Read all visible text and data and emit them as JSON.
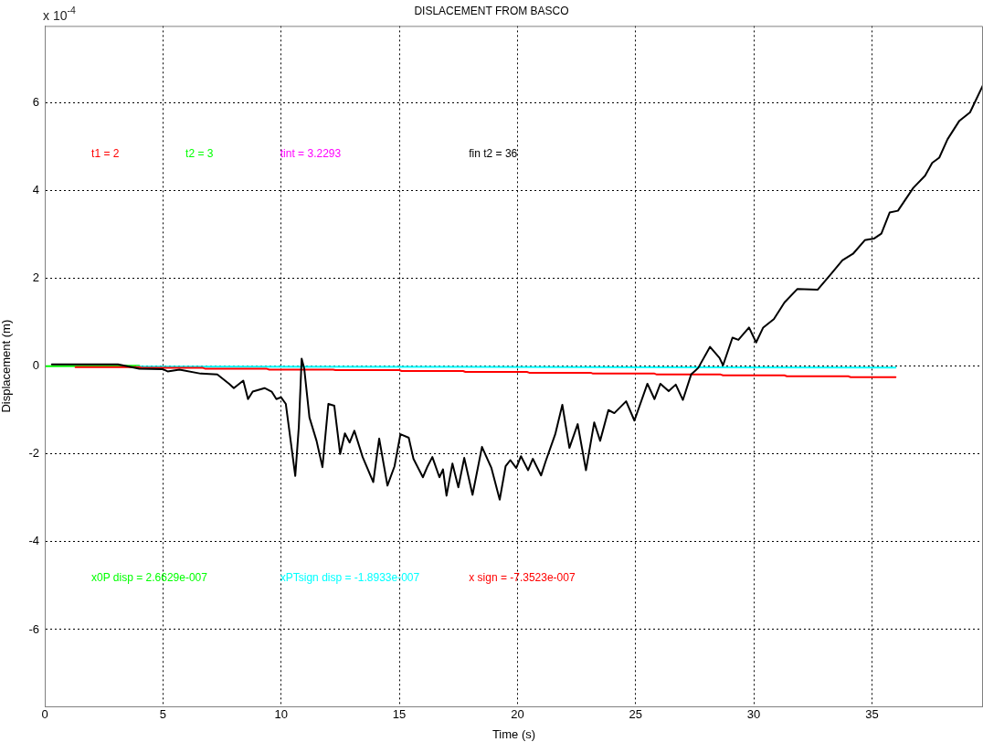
{
  "chart_data": {
    "type": "line",
    "title": "DISLACEMENT FROM BASCO",
    "xlabel": "Time (s)",
    "ylabel": "Displacement (m)",
    "xlim": [
      0,
      39.7
    ],
    "xticks": [
      0,
      5,
      10,
      15,
      20,
      25,
      30,
      35
    ],
    "ylim": [
      -7.75,
      7.75
    ],
    "yticks": [
      -6,
      -4,
      -2,
      0,
      2,
      4,
      6
    ],
    "grid": true,
    "legend": false,
    "marker": "none",
    "line_style": "solid",
    "series": [
      {
        "color": "#000000",
        "x": [
          0.3,
          3.1,
          4.0,
          5.0,
          5.2,
          5.7,
          6.6,
          7.3,
          7.8,
          8.0,
          8.4,
          8.6,
          8.8,
          9.3,
          9.6,
          9.8,
          10.0,
          10.2,
          10.6,
          10.75,
          10.87,
          10.98,
          11.2,
          11.5,
          11.75,
          12.0,
          12.25,
          12.5,
          12.7,
          12.9,
          13.1,
          13.45,
          13.9,
          14.15,
          14.5,
          14.8,
          15.05,
          15.4,
          15.6,
          16.0,
          16.2,
          16.4,
          16.7,
          16.85,
          17.0,
          17.25,
          17.5,
          17.75,
          18.1,
          18.5,
          18.9,
          19.25,
          19.5,
          19.7,
          19.95,
          20.15,
          20.45,
          20.65,
          21.0,
          21.2,
          21.6,
          21.9,
          22.2,
          22.55,
          22.9,
          23.25,
          23.5,
          23.85,
          24.1,
          24.6,
          24.95,
          25.5,
          25.8,
          26.05,
          26.4,
          26.7,
          27.0,
          27.35,
          27.65,
          28.15,
          28.55,
          28.7,
          29.1,
          29.35,
          29.8,
          30.1,
          30.4,
          30.85,
          31.3,
          31.85,
          32.7,
          33.3,
          33.75,
          34.2,
          34.7,
          35.1,
          35.4,
          35.75,
          36.1,
          36.75,
          37.25,
          37.55,
          37.85,
          38.2,
          38.7,
          39.15,
          39.7
        ],
        "values": [
          0.04,
          0.04,
          -0.06,
          -0.07,
          -0.12,
          -0.08,
          -0.17,
          -0.19,
          -0.4,
          -0.5,
          -0.33,
          -0.75,
          -0.58,
          -0.5,
          -0.58,
          -0.75,
          -0.71,
          -0.86,
          -2.5,
          -1.38,
          0.17,
          -0.06,
          -1.17,
          -1.7,
          -2.3,
          -0.86,
          -0.9,
          -2.0,
          -1.53,
          -1.74,
          -1.47,
          -2.07,
          -2.64,
          -1.65,
          -2.72,
          -2.28,
          -1.55,
          -1.63,
          -2.11,
          -2.53,
          -2.28,
          -2.07,
          -2.53,
          -2.35,
          -2.95,
          -2.22,
          -2.76,
          -2.09,
          -2.93,
          -1.84,
          -2.32,
          -3.04,
          -2.28,
          -2.14,
          -2.32,
          -2.05,
          -2.37,
          -2.11,
          -2.49,
          -2.16,
          -1.55,
          -0.88,
          -1.86,
          -1.32,
          -2.37,
          -1.28,
          -1.7,
          -1.0,
          -1.07,
          -0.8,
          -1.24,
          -0.4,
          -0.75,
          -0.4,
          -0.57,
          -0.42,
          -0.77,
          -0.19,
          -0.04,
          0.44,
          0.19,
          0.02,
          0.65,
          0.6,
          0.88,
          0.54,
          0.88,
          1.07,
          1.45,
          1.76,
          1.74,
          2.12,
          2.41,
          2.56,
          2.87,
          2.91,
          3.02,
          3.5,
          3.54,
          4.06,
          4.34,
          4.63,
          4.75,
          5.17,
          5.59,
          5.78,
          6.4
        ]
      },
      {
        "color": "#ff0000",
        "x": [
          1.3,
          4.0,
          4.1,
          6.7,
          6.8,
          9.4,
          9.5,
          12.2,
          12.3,
          15.0,
          15.1,
          17.7,
          17.8,
          20.4,
          20.5,
          23.1,
          23.2,
          25.8,
          25.9,
          28.6,
          28.7,
          31.3,
          31.4,
          34.0,
          34.1,
          36.0
        ],
        "values": [
          -0.02,
          -0.02,
          -0.04,
          -0.04,
          -0.06,
          -0.06,
          -0.08,
          -0.08,
          -0.09,
          -0.09,
          -0.11,
          -0.11,
          -0.13,
          -0.13,
          -0.15,
          -0.15,
          -0.17,
          -0.17,
          -0.19,
          -0.19,
          -0.21,
          -0.21,
          -0.23,
          -0.23,
          -0.25,
          -0.25
        ]
      },
      {
        "color": "#00ffff",
        "x": [
          3.9,
          36.0
        ],
        "values": [
          -0.01,
          -0.03
        ]
      },
      {
        "color": "#00ff00",
        "x": [
          0.0,
          4.0
        ],
        "values": [
          0.0,
          0.01
        ]
      }
    ],
    "annotations": [
      "x 10$^{-4}$",
      "t1 = 2",
      "t2 = 3",
      "tint = 3.2293",
      "fin t2 = 36",
      "x0P disp = 2.6629e-007",
      "xPTsign disp = -1.8933e-007",
      "x sign = -7.3523e-007"
    ]
  }
}
